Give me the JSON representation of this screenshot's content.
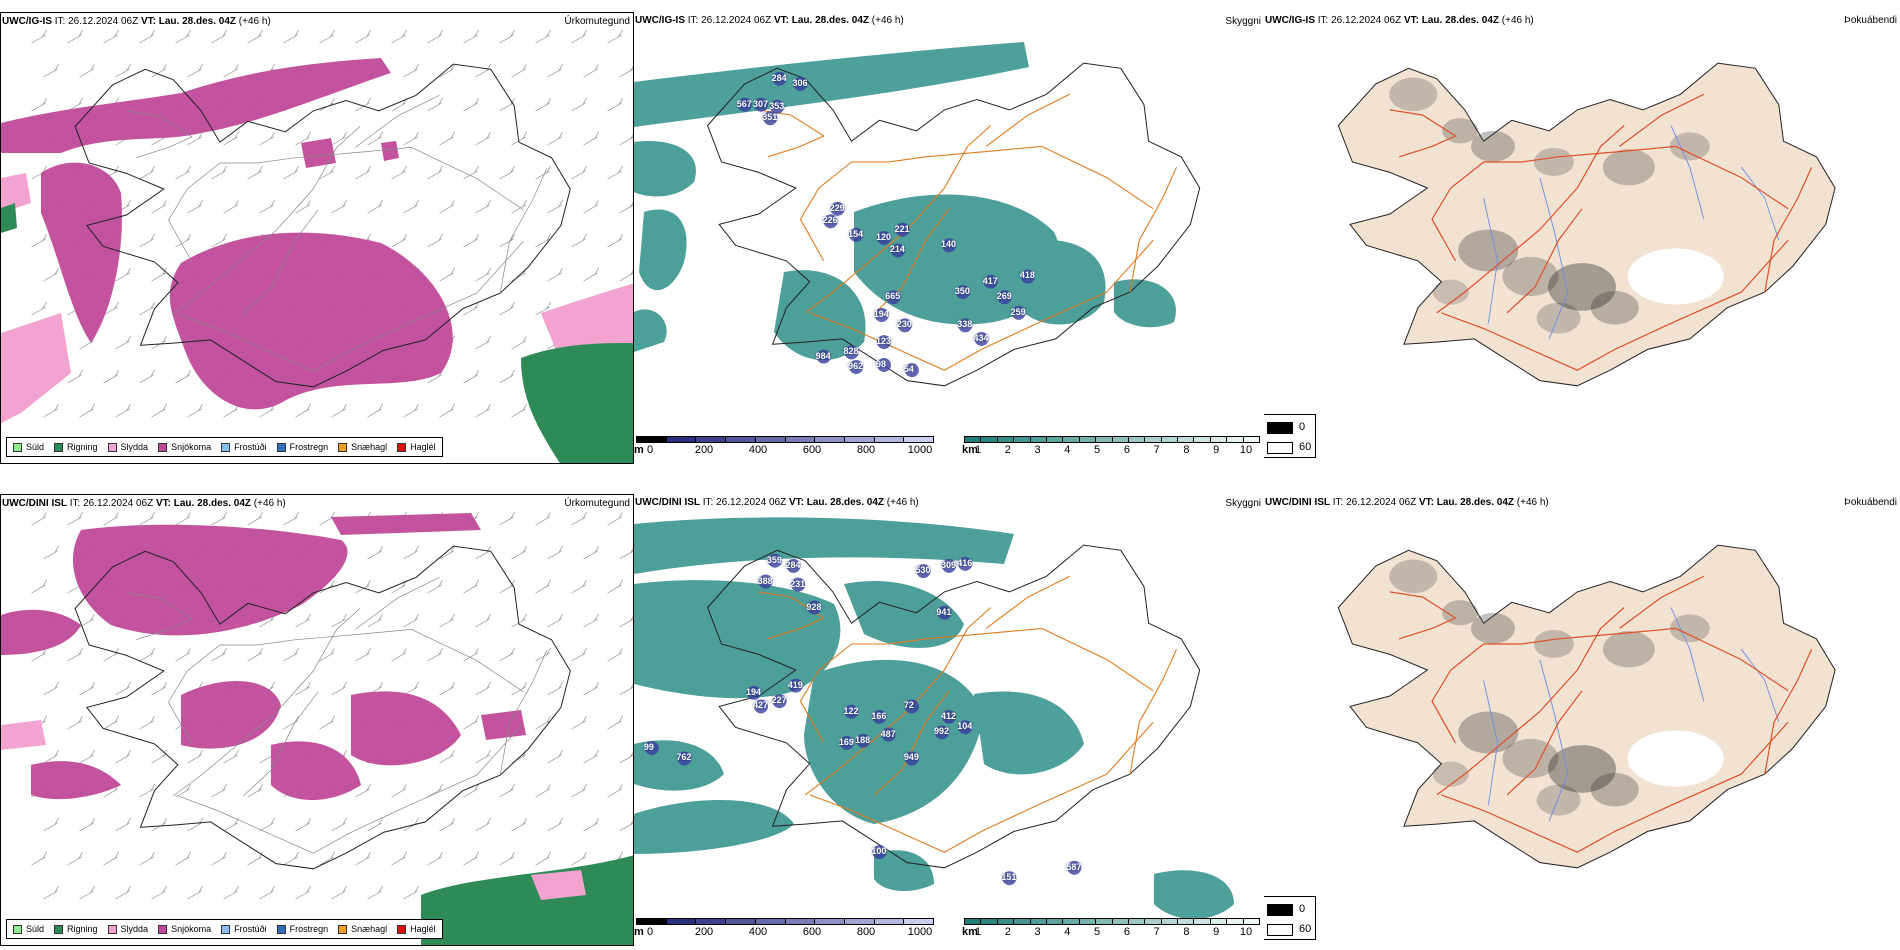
{
  "rows": [
    {
      "model": "UWC/IG-IS",
      "it_label": "IT:",
      "it_value": "26.12.2024 06Z",
      "vt_label": "VT:",
      "vt_value": "Lau. 28.des. 04Z",
      "lead": "(+46 h)",
      "values": [
        {
          "text": "284",
          "lat": 66.35,
          "lon": -22.55
        },
        {
          "text": "306",
          "lat": 66.3,
          "lon": -22.1
        },
        {
          "text": "567",
          "lat": 66.1,
          "lon": -23.3
        },
        {
          "text": "307",
          "lat": 66.1,
          "lon": -22.95
        },
        {
          "text": "353",
          "lat": 66.08,
          "lon": -22.6
        },
        {
          "text": "351",
          "lat": 65.97,
          "lon": -22.75
        },
        {
          "text": "229",
          "lat": 65.1,
          "lon": -21.3
        },
        {
          "text": "226",
          "lat": 64.98,
          "lon": -21.45
        },
        {
          "text": "154",
          "lat": 64.85,
          "lon": -20.9
        },
        {
          "text": "120",
          "lat": 64.82,
          "lon": -20.3
        },
        {
          "text": "221",
          "lat": 64.9,
          "lon": -19.9
        },
        {
          "text": "214",
          "lat": 64.7,
          "lon": -20.0
        },
        {
          "text": "140",
          "lat": 64.75,
          "lon": -18.9
        },
        {
          "text": "418",
          "lat": 64.45,
          "lon": -17.2
        },
        {
          "text": "350",
          "lat": 64.3,
          "lon": -18.6
        },
        {
          "text": "417",
          "lat": 64.4,
          "lon": -18.0
        },
        {
          "text": "269",
          "lat": 64.25,
          "lon": -17.7
        },
        {
          "text": "259",
          "lat": 64.1,
          "lon": -17.4
        },
        {
          "text": "338",
          "lat": 63.98,
          "lon": -18.55
        },
        {
          "text": "434",
          "lat": 63.85,
          "lon": -18.2
        },
        {
          "text": "665",
          "lat": 64.25,
          "lon": -20.1
        },
        {
          "text": "194",
          "lat": 64.08,
          "lon": -20.35
        },
        {
          "text": "230",
          "lat": 63.98,
          "lon": -19.85
        },
        {
          "text": "123",
          "lat": 63.82,
          "lon": -20.3
        },
        {
          "text": "984",
          "lat": 63.68,
          "lon": -21.6
        },
        {
          "text": "828",
          "lat": 63.72,
          "lon": -21.0
        },
        {
          "text": "962",
          "lat": 63.58,
          "lon": -20.9
        },
        {
          "text": "98",
          "lat": 63.6,
          "lon": -20.3
        },
        {
          "text": "54",
          "lat": 63.55,
          "lon": -19.7
        }
      ]
    },
    {
      "model": "UWC/DINI ISL",
      "it_label": "IT:",
      "it_value": "26.12.2024 06Z",
      "vt_label": "VT:",
      "vt_value": "Lau. 28.des. 04Z",
      "lead": "(+46 h)",
      "values": [
        {
          "text": "359",
          "lat": 66.35,
          "lon": -22.65
        },
        {
          "text": "284",
          "lat": 66.3,
          "lon": -22.25
        },
        {
          "text": "388",
          "lat": 66.15,
          "lon": -22.85
        },
        {
          "text": "231",
          "lat": 66.12,
          "lon": -22.15
        },
        {
          "text": "309",
          "lat": 66.3,
          "lon": -18.9
        },
        {
          "text": "416",
          "lat": 66.32,
          "lon": -18.55
        },
        {
          "text": "530",
          "lat": 66.25,
          "lon": -19.45
        },
        {
          "text": "941",
          "lat": 65.85,
          "lon": -19.0
        },
        {
          "text": "928",
          "lat": 65.9,
          "lon": -21.8
        },
        {
          "text": "419",
          "lat": 65.15,
          "lon": -22.2
        },
        {
          "text": "194",
          "lat": 65.08,
          "lon": -23.1
        },
        {
          "text": "427",
          "lat": 64.95,
          "lon": -22.95
        },
        {
          "text": "227",
          "lat": 65.0,
          "lon": -22.55
        },
        {
          "text": "122",
          "lat": 64.9,
          "lon": -21.0
        },
        {
          "text": "72",
          "lat": 64.95,
          "lon": -19.7
        },
        {
          "text": "166",
          "lat": 64.85,
          "lon": -20.4
        },
        {
          "text": "412",
          "lat": 64.85,
          "lon": -18.9
        },
        {
          "text": "104",
          "lat": 64.75,
          "lon": -18.55
        },
        {
          "text": "992",
          "lat": 64.7,
          "lon": -19.05
        },
        {
          "text": "949",
          "lat": 64.45,
          "lon": -19.7
        },
        {
          "text": "169",
          "lat": 64.6,
          "lon": -21.1
        },
        {
          "text": "188",
          "lat": 64.62,
          "lon": -20.75
        },
        {
          "text": "487",
          "lat": 64.68,
          "lon": -20.2
        },
        {
          "text": "762",
          "lat": 64.45,
          "lon": -24.6
        },
        {
          "text": "99",
          "lat": 64.55,
          "lon": -25.3
        },
        {
          "text": "100",
          "lat": 63.55,
          "lon": -20.4
        },
        {
          "text": "587",
          "lat": 63.4,
          "lon": -16.2
        },
        {
          "text": "151",
          "lat": 63.3,
          "lon": -17.6
        }
      ]
    }
  ],
  "precip_panel": {
    "label": "Úrkomutegund",
    "legend": [
      {
        "label": "Súld",
        "color": "#90ee90"
      },
      {
        "label": "Rigning",
        "color": "#2e8b57"
      },
      {
        "label": "Slydda",
        "color": "#f2a3cf"
      },
      {
        "label": "Snjókoma",
        "color": "#c04a9a"
      },
      {
        "label": "Frostúði",
        "color": "#87bff0"
      },
      {
        "label": "Frostregn",
        "color": "#2f6fbf"
      },
      {
        "label": "Snæhagl",
        "color": "#f0a020"
      },
      {
        "label": "Haglél",
        "color": "#e01010"
      }
    ]
  },
  "visibility_panel": {
    "label": "Skyggni",
    "ceiling_scale": {
      "unit": "m",
      "ticks": [
        "0",
        "200",
        "400",
        "600",
        "800",
        "1000"
      ]
    },
    "vis_scale": {
      "unit": "km",
      "ticks": [
        "1",
        "2",
        "3",
        "4",
        "5",
        "6",
        "7",
        "8",
        "9",
        "10"
      ]
    }
  },
  "fog_panel": {
    "label": "Þokuábendi",
    "legend": [
      "0",
      "60"
    ]
  },
  "colors": {
    "snow": "#c04a9a",
    "rain": "#2e8b57",
    "sleet": "#f2a3cf",
    "vis_fill": "#2f8f88",
    "roads": "#e07b20",
    "fog_land": "#f2e2d2",
    "fog_roads": "#e0502a",
    "rivers": "#6d8ce8"
  }
}
